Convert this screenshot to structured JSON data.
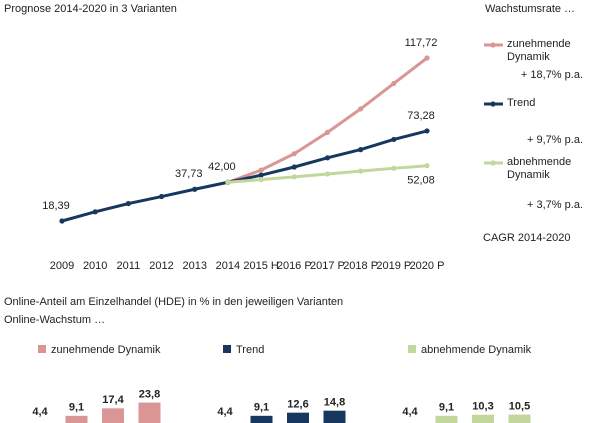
{
  "chart_data": [
    {
      "type": "line",
      "title": "Prognose 2014-2020 in 3 Varianten",
      "legend_title": "Wachstumsrate …",
      "legend_note": "CAGR 2014-2020",
      "categories": [
        "2009",
        "2010",
        "2011",
        "2012",
        "2013",
        "2014",
        "2015 H",
        "2016 P",
        "2017 P",
        "2018 P",
        "2019 P",
        "2020 P"
      ],
      "series": [
        {
          "name": "zunehmende Dynamik",
          "rate": "+ 18,7% p.a.",
          "color": "#d99694",
          "values": [
            null,
            null,
            null,
            null,
            null,
            42.0,
            49.4,
            59.4,
            72.4,
            86.7,
            102.2,
            117.72
          ],
          "value_labels": [
            null,
            null,
            null,
            null,
            null,
            null,
            null,
            null,
            null,
            null,
            null,
            "117,72"
          ]
        },
        {
          "name": "Trend",
          "rate": "+ 9,7% p.a.",
          "color": "#17375e",
          "values": [
            18.39,
            24.0,
            29.0,
            33.3,
            37.73,
            42.0,
            46.3,
            51.3,
            56.9,
            61.9,
            68.1,
            73.28
          ],
          "value_labels": [
            "18,39",
            null,
            null,
            null,
            "37,73",
            "42,00",
            null,
            null,
            null,
            null,
            null,
            "73,28"
          ]
        },
        {
          "name": "abnehmende Dynamik",
          "rate": "+ 3,7% p.a.",
          "color": "#c3d69b",
          "values": [
            null,
            null,
            null,
            null,
            null,
            42.0,
            43.6,
            45.3,
            47.0,
            48.8,
            50.5,
            52.08
          ],
          "value_labels": [
            null,
            null,
            null,
            null,
            null,
            null,
            null,
            null,
            null,
            null,
            null,
            "52,08"
          ]
        }
      ]
    },
    {
      "type": "bar",
      "categories": [
        null,
        null,
        null,
        null
      ],
      "series": [
        {
          "name": "zunehmende Dynamik",
          "color": "#d99694",
          "values": [
            4.4,
            9.1,
            17.4,
            23.8
          ],
          "value_labels": [
            "4,4",
            "9,1",
            "17,4",
            "23,8"
          ]
        }
      ]
    },
    {
      "type": "bar",
      "categories": [
        null,
        null,
        null,
        null
      ],
      "series": [
        {
          "name": "Trend",
          "color": "#17375e",
          "values": [
            4.4,
            9.1,
            12.6,
            14.8
          ],
          "value_labels": [
            "4,4",
            "9,1",
            "12,6",
            "14,8"
          ]
        }
      ]
    },
    {
      "type": "bar",
      "categories": [
        null,
        null,
        null,
        null
      ],
      "series": [
        {
          "name": "abnehmende Dynamik",
          "color": "#c3d69b",
          "values": [
            4.4,
            9.1,
            10.3,
            10.5
          ],
          "value_labels": [
            "4,4",
            "9,1",
            "10,3",
            "10,5"
          ]
        }
      ]
    }
  ],
  "footer": {
    "title": "Online-Anteil am Einzelhandel (HDE) in % in den jeweiligen Varianten",
    "subtitle": "Online-Wachstum …"
  }
}
